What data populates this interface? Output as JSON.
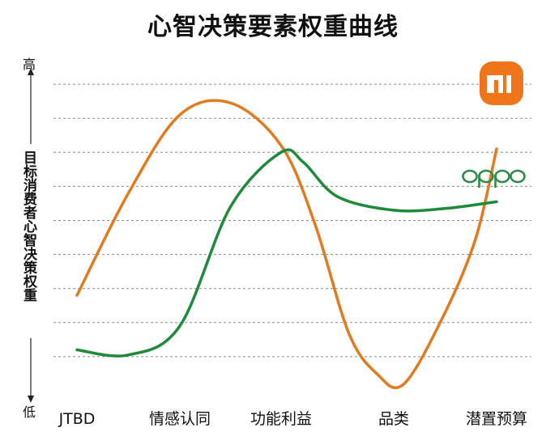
{
  "title": "心智决策要素权重曲线",
  "y_axis": {
    "label": "目标消费者心智决策权重",
    "high": "高",
    "low": "低"
  },
  "legend_logos": [
    {
      "name": "mi-logo",
      "text": "MI",
      "color": "#F07419"
    },
    {
      "name": "oppo-logo",
      "text": "oppo",
      "color": "#2F8A4A"
    }
  ],
  "chart_data": {
    "type": "line",
    "title": "心智决策要素权重曲线",
    "xlabel": "",
    "ylabel": "目标消费者心智决策权重",
    "categories": [
      "JTBD",
      "情感认同",
      "功能利益",
      "品类",
      "潜置预算"
    ],
    "ylim": [
      0,
      10
    ],
    "grid": true,
    "legend": "right",
    "series": [
      {
        "name": "",
        "color": "#E07B1F",
        "curve": [
          [
            0,
            2.8
          ],
          [
            0.5,
            5.8
          ],
          [
            1,
            8.1
          ],
          [
            1.5,
            8.45
          ],
          [
            2,
            7.2
          ],
          [
            2.3,
            4.9
          ],
          [
            2.6,
            1.7
          ],
          [
            2.85,
            0.5
          ],
          [
            3.1,
            0.2
          ],
          [
            3.5,
            2.3
          ],
          [
            3.8,
            4.5
          ],
          [
            4,
            7.1
          ]
        ]
      },
      {
        "name": "",
        "color": "#1F8A3A",
        "curve": [
          [
            0,
            1.2
          ],
          [
            0.5,
            1.05
          ],
          [
            1,
            1.9
          ],
          [
            1.5,
            5.4
          ],
          [
            2,
            7.0
          ],
          [
            2.2,
            6.7
          ],
          [
            2.5,
            5.7
          ],
          [
            3,
            5.3
          ],
          [
            3.5,
            5.35
          ],
          [
            4,
            5.55
          ]
        ]
      }
    ]
  }
}
